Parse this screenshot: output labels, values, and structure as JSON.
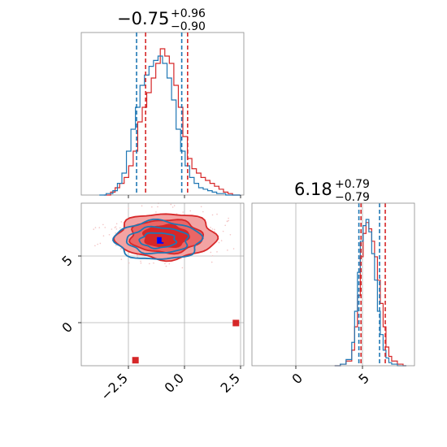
{
  "colors": {
    "series_red": "#d62728",
    "series_blue": "#1f77b4",
    "contour_fill_light": "#f3a3a3",
    "contour_fill_mid": "#ea6666",
    "contour_fill_dark": "#d62728",
    "frame": "#8c8c8c",
    "grid": "#b0b0b0"
  },
  "chart_data": [
    {
      "type": "histogram",
      "panel": "marginal-param-1",
      "title_value": "−0.75",
      "title_upper": "+0.96",
      "title_lower": "−0.90",
      "xlim": [
        -4.5,
        2.7
      ],
      "grid": false,
      "series": [
        {
          "color": "#d62728",
          "quantiles": [
            -1.65,
            0.21
          ],
          "bins_x": [
            -3.5,
            -3.2,
            -3.0,
            -2.8,
            -2.6,
            -2.4,
            -2.2,
            -2.0,
            -1.8,
            -1.6,
            -1.4,
            -1.2,
            -1.0,
            -0.8,
            -0.6,
            -0.4,
            -0.2,
            0.0,
            0.2,
            0.4,
            0.6,
            0.8,
            1.0,
            1.2,
            1.4,
            1.6,
            1.8,
            2.0,
            2.2,
            2.4
          ],
          "counts": [
            0,
            2,
            5,
            8,
            12,
            20,
            30,
            50,
            60,
            70,
            80,
            90,
            100,
            95,
            90,
            75,
            60,
            40,
            25,
            18,
            15,
            12,
            10,
            8,
            6,
            4,
            2,
            1,
            0,
            0
          ]
        },
        {
          "color": "#1f77b4",
          "quantiles": [
            -2.05,
            -0.05
          ],
          "bins_x": [
            -3.7,
            -3.4,
            -3.1,
            -2.9,
            -2.7,
            -2.5,
            -2.3,
            -2.1,
            -1.9,
            -1.7,
            -1.5,
            -1.3,
            -1.1,
            -0.9,
            -0.7,
            -0.5,
            -0.3,
            -0.1,
            0.1,
            0.3,
            0.5,
            0.7,
            0.9,
            1.1,
            1.3,
            1.5,
            1.7,
            1.9,
            2.1,
            2.4
          ],
          "counts": [
            0,
            1,
            3,
            8,
            15,
            30,
            45,
            60,
            75,
            82,
            88,
            92,
            95,
            90,
            80,
            65,
            45,
            30,
            20,
            12,
            8,
            5,
            4,
            3,
            2,
            1,
            1,
            0,
            0,
            0
          ]
        }
      ]
    },
    {
      "type": "histogram",
      "panel": "marginal-param-2",
      "title_value": "6.18",
      "title_upper": "+0.79",
      "title_lower": "−0.79",
      "xlim": [
        -2.4,
        9.0
      ],
      "xticks": [
        0,
        5
      ],
      "grid": true,
      "series": [
        {
          "color": "#d62728",
          "quantiles": [
            5.25,
            6.95
          ],
          "bins_x": [
            3.4,
            3.8,
            4.2,
            4.6,
            4.8,
            5.0,
            5.2,
            5.4,
            5.6,
            5.8,
            6.0,
            6.2,
            6.4,
            6.6,
            6.8,
            7.0,
            7.2,
            7.4,
            7.8,
            8.2
          ],
          "counts": [
            0,
            1,
            3,
            10,
            25,
            45,
            70,
            85,
            92,
            88,
            80,
            70,
            55,
            40,
            25,
            12,
            6,
            3,
            1,
            0
          ]
        },
        {
          "color": "#1f77b4",
          "quantiles": [
            5.1,
            6.55
          ],
          "bins_x": [
            3.4,
            3.8,
            4.2,
            4.6,
            4.8,
            5.0,
            5.2,
            5.4,
            5.6,
            5.8,
            6.0,
            6.2,
            6.4,
            6.6,
            6.8,
            7.0,
            7.2,
            7.4,
            7.8,
            8.2
          ],
          "counts": [
            0,
            1,
            4,
            15,
            35,
            60,
            80,
            90,
            94,
            86,
            72,
            55,
            35,
            20,
            10,
            5,
            2,
            1,
            0,
            0
          ]
        }
      ]
    },
    {
      "type": "contour",
      "panel": "joint-param-1-param-2",
      "xlim": [
        -4.5,
        2.7
      ],
      "ylim": [
        -3.2,
        8.6
      ],
      "xticks": [
        -2.5,
        0.0,
        2.5
      ],
      "xtick_labels": [
        "−2.5",
        "0.0",
        "2.5"
      ],
      "yticks": [
        0,
        5
      ],
      "grid": true,
      "red_center": [
        -0.75,
        6.2
      ],
      "red_radii": [
        [
          1.0,
          0.8
        ],
        [
          1.6,
          1.2
        ],
        [
          2.2,
          1.65
        ]
      ],
      "blue_center": [
        -1.1,
        5.9
      ],
      "blue_radii": [
        [
          0.8,
          0.55
        ],
        [
          1.35,
          0.95
        ],
        [
          1.9,
          1.4
        ]
      ],
      "markers": [
        {
          "color": "#1f77b4",
          "x": -1.05,
          "y": 5.85,
          "size": "small"
        },
        {
          "color": "#0000ff",
          "x": -1.0,
          "y": 5.9,
          "size": "large"
        },
        {
          "color": "#d62728",
          "x": -0.8,
          "y": 6.0,
          "size": "large"
        },
        {
          "color": "#d62728",
          "x": -2.1,
          "y": -2.8,
          "size": "large"
        },
        {
          "color": "#d62728",
          "x": 2.35,
          "y": -0.1,
          "size": "large"
        }
      ]
    }
  ],
  "labels": {
    "panel1_title_value": "−0.75",
    "panel1_title_upper": "+0.96",
    "panel1_title_lower": "−0.90",
    "panel2_title_value": "6.18",
    "panel2_title_upper": "+0.79",
    "panel2_title_lower": "−0.79",
    "xtick_m25": "−2.5",
    "xtick_0": "0.0",
    "xtick_25": "2.5",
    "ytick_5": "5",
    "ytick_0": "0",
    "p2_xtick_0": "0",
    "p2_xtick_5": "5"
  }
}
